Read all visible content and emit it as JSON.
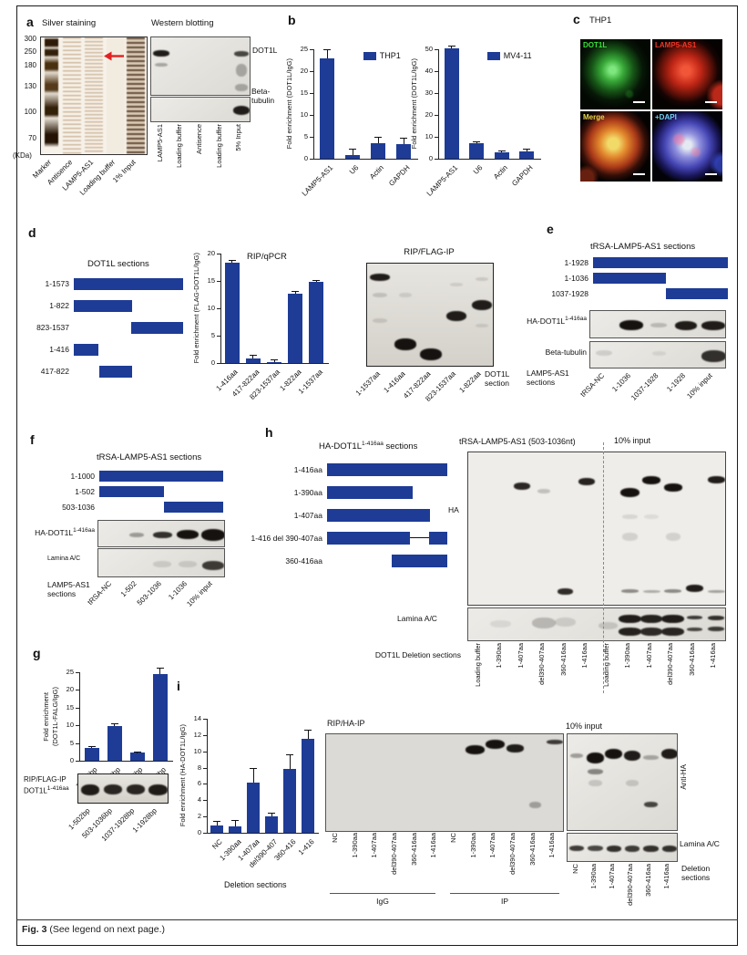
{
  "page": {
    "caption_fig": "Fig. 3",
    "caption_rest": " (See legend on next page.)"
  },
  "colors": {
    "bar_blue": "#1e3c96",
    "arrow_red": "#e32021",
    "dot1l_green": "#3ae03a",
    "lamp5_red": "#f03726",
    "merge_yellow": "#e8d44d",
    "dapi_cyan": "#6fd0f0"
  },
  "panel_a": {
    "label": "a",
    "silver_title": "Silver staining",
    "western_title": "Western blotting",
    "kda": [
      "300",
      "250",
      "180",
      "130",
      "100",
      "70"
    ],
    "kda_unit": "(KDa)",
    "silver_lanes": [
      "Marker",
      "Antisence",
      "LAMP5-AS1",
      "Loading buffer",
      "1% Input"
    ],
    "western_lanes": [
      "LAMP5-AS1",
      "Loading buffer",
      "Antisence",
      "Loading buffer",
      "5% Input"
    ],
    "row_dot1l": "DOT1L",
    "row_tubulin": "Beta-tubulin",
    "blot_dot1l": {
      "lanes": 5,
      "bands": [
        {
          "l": 0,
          "y": 0.27,
          "s": 0.95,
          "h": 7,
          "w": 0.8
        },
        {
          "l": 0,
          "y": 0.46,
          "s": 0.3,
          "h": 4,
          "w": 0.6
        },
        {
          "l": 4,
          "y": 0.27,
          "s": 0.75,
          "h": 6,
          "w": 0.7
        },
        {
          "l": 4,
          "y": 0.55,
          "s": 0.28,
          "h": 14,
          "w": 0.55
        },
        {
          "l": 4,
          "y": 0.85,
          "s": 0.28,
          "h": 8,
          "w": 0.6
        }
      ]
    },
    "blot_tubulin": {
      "lanes": 5,
      "bands": [
        {
          "l": 4,
          "y": 0.5,
          "s": 0.95,
          "h": 10,
          "w": 0.85
        }
      ]
    }
  },
  "panel_b": {
    "label": "b"
  },
  "panel_c": {
    "label": "c",
    "cell_line": "THP1",
    "cells": [
      {
        "name": "DOT1L"
      },
      {
        "name": "LAMP5-AS1"
      },
      {
        "name": "Merge"
      },
      {
        "name": "+DAPI"
      }
    ]
  },
  "panel_d": {
    "label": "d",
    "sections_title": "DOT1L sections",
    "sections": [
      {
        "label": "1-1573",
        "s": 0,
        "e": 1
      },
      {
        "label": "1-822",
        "s": 0,
        "e": 0.53
      },
      {
        "label": "823-1537",
        "s": 0.525,
        "e": 1
      },
      {
        "label": "1-416",
        "s": 0,
        "e": 0.225
      },
      {
        "label": "417-822",
        "s": 0.23,
        "e": 0.53
      }
    ],
    "blot_title": "RIP/FLAG-IP",
    "blot_lanes": [
      "1-1537aa",
      "1-416aa",
      "417-822aa",
      "823-1537aa",
      "1-822aa"
    ],
    "blot_caption": "DOT1L section",
    "blot": {
      "lanes": 5,
      "bands": [
        {
          "l": 0,
          "y": 0.13,
          "s": 0.95,
          "h": 8,
          "w": 0.8
        },
        {
          "l": 1,
          "y": 0.78,
          "s": 1,
          "h": 13,
          "w": 0.85
        },
        {
          "l": 2,
          "y": 0.87,
          "s": 1,
          "h": 13,
          "w": 0.85
        },
        {
          "l": 3,
          "y": 0.5,
          "s": 0.95,
          "h": 11,
          "w": 0.8
        },
        {
          "l": 4,
          "y": 0.4,
          "s": 0.95,
          "h": 11,
          "w": 0.8
        },
        {
          "l": 0,
          "y": 0.3,
          "s": 0.15,
          "h": 5,
          "w": 0.6
        },
        {
          "l": 0,
          "y": 0.55,
          "s": 0.12,
          "h": 5,
          "w": 0.6
        },
        {
          "l": 1,
          "y": 0.3,
          "s": 0.1,
          "h": 5,
          "w": 0.5
        },
        {
          "l": 3,
          "y": 0.2,
          "s": 0.1,
          "h": 4,
          "w": 0.5
        },
        {
          "l": 4,
          "y": 0.15,
          "s": 0.12,
          "h": 4,
          "w": 0.5
        },
        {
          "l": 4,
          "y": 0.6,
          "s": 0.1,
          "h": 4,
          "w": 0.5
        }
      ]
    }
  },
  "panel_e": {
    "label": "e",
    "sections_title": "tRSA-LAMP5-AS1 sections",
    "sections": [
      {
        "label": "1-1928",
        "s": 0,
        "e": 1
      },
      {
        "label": "1-1036",
        "s": 0,
        "e": 0.54
      },
      {
        "label": "1037-1928",
        "s": 0.54,
        "e": 1
      }
    ],
    "row_ha_base": "HA-DOT1L",
    "row_ha_sup": "1-416aa",
    "row_tubulin": "Beta-tubulin",
    "lanes": [
      "tRSA-NC",
      "1-1036",
      "1037-1928",
      "1-1928",
      "10% input"
    ],
    "lane_caption": "LAMP5-AS1 sections",
    "blot_ha": {
      "lanes": 5,
      "bands": [
        {
          "l": 1,
          "y": 0.5,
          "s": 1,
          "h": 11,
          "w": 0.85
        },
        {
          "l": 2,
          "y": 0.5,
          "s": 0.2,
          "h": 5,
          "w": 0.6
        },
        {
          "l": 3,
          "y": 0.5,
          "s": 0.95,
          "h": 10,
          "w": 0.8
        },
        {
          "l": 4,
          "y": 0.5,
          "s": 0.95,
          "h": 10,
          "w": 0.85
        }
      ]
    },
    "blot_tub": {
      "lanes": 5,
      "bands": [
        {
          "l": 4,
          "y": 0.5,
          "s": 0.85,
          "h": 13,
          "w": 0.9
        },
        {
          "l": 0,
          "y": 0.4,
          "s": 0.12,
          "h": 6,
          "w": 0.6
        },
        {
          "l": 2,
          "y": 0.4,
          "s": 0.08,
          "h": 5,
          "w": 0.5
        }
      ]
    }
  },
  "panel_f": {
    "label": "f",
    "sections_title": "tRSA-LAMP5-AS1 sections",
    "sections": [
      {
        "label": "1-1000",
        "s": 0,
        "e": 1
      },
      {
        "label": "1-502",
        "s": 0,
        "e": 0.52
      },
      {
        "label": "503-1036",
        "s": 0.52,
        "e": 1
      }
    ],
    "row_ha_base": "HA-DOT1L",
    "row_ha_sup": "1-416aa",
    "row_lamina": "Lamina A/C",
    "lanes": [
      "tRSA-NC",
      "1-502",
      "503-1036",
      "1-1036",
      "10% input"
    ],
    "lane_caption": "LAMP5-AS1 sections",
    "blot_ha": {
      "lanes": 5,
      "bands": [
        {
          "l": 1,
          "y": 0.5,
          "s": 0.35,
          "h": 5,
          "w": 0.6
        },
        {
          "l": 2,
          "y": 0.5,
          "s": 0.85,
          "h": 7,
          "w": 0.75
        },
        {
          "l": 3,
          "y": 0.5,
          "s": 1,
          "h": 10,
          "w": 0.85
        },
        {
          "l": 4,
          "y": 0.5,
          "s": 1,
          "h": 13,
          "w": 0.95
        }
      ]
    },
    "blot_lam": {
      "lanes": 5,
      "bands": [
        {
          "l": 2,
          "y": 0.5,
          "s": 0.12,
          "h": 7,
          "w": 0.7
        },
        {
          "l": 3,
          "y": 0.5,
          "s": 0.12,
          "h": 7,
          "w": 0.7
        },
        {
          "l": 4,
          "y": 0.55,
          "s": 0.8,
          "h": 10,
          "w": 0.85
        }
      ]
    }
  },
  "panel_g": {
    "label": "g",
    "blot_title": "RIP/FLAG-IP",
    "row_base": "DOT1L",
    "row_sup": "1-416aa",
    "lanes": [
      "1-502bp",
      "503-1036bp",
      "1037-1928bp",
      "1-1928bp"
    ],
    "blot": {
      "lanes": 4,
      "bands": [
        {
          "l": 0,
          "y": 0.5,
          "s": 0.95,
          "h": 12,
          "w": 0.8
        },
        {
          "l": 1,
          "y": 0.5,
          "s": 0.9,
          "h": 11,
          "w": 0.8
        },
        {
          "l": 2,
          "y": 0.5,
          "s": 0.9,
          "h": 11,
          "w": 0.8
        },
        {
          "l": 3,
          "y": 0.5,
          "s": 0.95,
          "h": 12,
          "w": 0.85
        }
      ]
    }
  },
  "panel_h": {
    "label": "h",
    "sections_title_base": "HA-DOT1L",
    "sections_title_sup": "1-416aa",
    "sections_title_rest": " sections",
    "sections": [
      {
        "label": "1-416aa",
        "s": 0,
        "e": 1
      },
      {
        "label": "1-390aa",
        "s": 0,
        "e": 0.71
      },
      {
        "label": "1-407aa",
        "s": 0,
        "e": 0.855
      },
      {
        "label": "1-416 del 390-407aa",
        "s": 0,
        "e": 0.69,
        "line": [
          0.69,
          0.85
        ],
        "seg2": [
          0.85,
          1
        ]
      },
      {
        "label": "360-416aa",
        "s": 0.54,
        "e": 1
      }
    ],
    "blot_title_left": "tRSA-LAMP5-AS1 (503-1036nt)",
    "blot_title_right": "10% input",
    "row_ha": "HA",
    "row_lamina": "Lamina A/C",
    "lane_caption": "DOT1L Deletion sections",
    "lanes": [
      "Loading buffer",
      "1-390aa",
      "1-407aa",
      "del390-407aa",
      "360-416aa",
      "1-416aa",
      "Loading buffer",
      "1-390aa",
      "1-407aa",
      "del390-407aa",
      "360-416aa",
      "1-416aa"
    ],
    "blot_ha": {
      "lanes": 12,
      "bands": [
        {
          "l": 2,
          "y": 0.22,
          "s": 0.9,
          "h": 8,
          "w": 0.75
        },
        {
          "l": 3,
          "y": 0.25,
          "s": 0.2,
          "h": 5,
          "w": 0.6
        },
        {
          "l": 5,
          "y": 0.19,
          "s": 0.92,
          "h": 8,
          "w": 0.75
        },
        {
          "l": 4,
          "y": 0.9,
          "s": 0.88,
          "h": 7,
          "w": 0.7
        },
        {
          "l": 7,
          "y": 0.26,
          "s": 1,
          "h": 10,
          "w": 0.9
        },
        {
          "l": 8,
          "y": 0.18,
          "s": 1,
          "h": 9,
          "w": 0.85
        },
        {
          "l": 9,
          "y": 0.23,
          "s": 1,
          "h": 9,
          "w": 0.85
        },
        {
          "l": 11,
          "y": 0.18,
          "s": 0.95,
          "h": 8,
          "w": 0.8
        },
        {
          "l": 10,
          "y": 0.88,
          "s": 0.95,
          "h": 8,
          "w": 0.8
        },
        {
          "l": 7,
          "y": 0.9,
          "s": 0.45,
          "h": 4,
          "w": 0.8
        },
        {
          "l": 8,
          "y": 0.9,
          "s": 0.3,
          "h": 3,
          "w": 0.8
        },
        {
          "l": 9,
          "y": 0.9,
          "s": 0.45,
          "h": 4,
          "w": 0.8
        },
        {
          "l": 11,
          "y": 0.9,
          "s": 0.35,
          "h": 3,
          "w": 0.8
        },
        {
          "l": 7,
          "y": 0.55,
          "s": 0.12,
          "h": 9,
          "w": 0.7
        },
        {
          "l": 9,
          "y": 0.55,
          "s": 0.12,
          "h": 9,
          "w": 0.7
        },
        {
          "l": 7,
          "y": 0.42,
          "s": 0.1,
          "h": 5,
          "w": 0.7
        },
        {
          "l": 8,
          "y": 0.42,
          "s": 0.08,
          "h": 5,
          "w": 0.7
        }
      ]
    },
    "blot_lam": {
      "lanes": 12,
      "bands": [
        {
          "l": 1,
          "y": 0.45,
          "s": 0.08,
          "h": 8,
          "w": 1
        },
        {
          "l": 3,
          "y": 0.42,
          "s": 0.22,
          "h": 12,
          "w": 1.1
        },
        {
          "l": 4,
          "y": 0.4,
          "s": 0.12,
          "h": 10,
          "w": 1
        },
        {
          "l": 6,
          "y": 0.5,
          "s": 0.15,
          "h": 8,
          "w": 0.9
        },
        {
          "l": 7,
          "y": 0.3,
          "s": 0.95,
          "h": 9,
          "w": 1.05
        },
        {
          "l": 7,
          "y": 0.68,
          "s": 0.92,
          "h": 9,
          "w": 1.05
        },
        {
          "l": 8,
          "y": 0.3,
          "s": 0.92,
          "h": 9,
          "w": 1
        },
        {
          "l": 8,
          "y": 0.68,
          "s": 0.88,
          "h": 9,
          "w": 1
        },
        {
          "l": 9,
          "y": 0.3,
          "s": 0.95,
          "h": 9,
          "w": 1.05
        },
        {
          "l": 9,
          "y": 0.68,
          "s": 0.9,
          "h": 9,
          "w": 1.05
        },
        {
          "l": 10,
          "y": 0.28,
          "s": 0.8,
          "h": 4,
          "w": 0.7
        },
        {
          "l": 10,
          "y": 0.62,
          "s": 0.75,
          "h": 4,
          "w": 0.7
        },
        {
          "l": 11,
          "y": 0.28,
          "s": 0.85,
          "h": 5,
          "w": 0.75
        },
        {
          "l": 11,
          "y": 0.6,
          "s": 0.8,
          "h": 5,
          "w": 0.75
        }
      ]
    }
  },
  "panel_i": {
    "label": "i",
    "blot_title_left": "RIP/HA-IP",
    "blot_title_right": "10% input",
    "group_left": "IgG",
    "group_right": "IP",
    "row_antiha": "Anti-HA",
    "row_lamina": "Lamina A/C",
    "lane_caption": "Deletion sections",
    "rip_lanes": [
      "NC",
      "1-390aa",
      "1-407aa",
      "del390-407aa",
      "360-416aa",
      "1-416aa",
      "NC",
      "1-390aa",
      "1-407aa",
      "del390-407aa",
      "360-416aa",
      "1-416aa"
    ],
    "input_lanes": [
      "NC",
      "1-390aa",
      "1-407aa",
      "del390-407aa",
      "360-416aa",
      "1-416aa"
    ],
    "blot_rip": {
      "lanes": 12,
      "bands": [
        {
          "l": 7,
          "y": 0.16,
          "s": 1,
          "h": 10,
          "w": 0.95
        },
        {
          "l": 8,
          "y": 0.1,
          "s": 1,
          "h": 10,
          "w": 0.95
        },
        {
          "l": 9,
          "y": 0.14,
          "s": 0.95,
          "h": 9,
          "w": 0.85
        },
        {
          "l": 10,
          "y": 0.72,
          "s": 0.3,
          "h": 7,
          "w": 0.6
        },
        {
          "l": 11,
          "y": 0.08,
          "s": 0.8,
          "h": 5,
          "w": 0.85
        }
      ]
    },
    "blot_input": {
      "lanes": 6,
      "bands": [
        {
          "l": 0,
          "y": 0.22,
          "s": 0.35,
          "h": 5,
          "w": 0.7
        },
        {
          "l": 1,
          "y": 0.24,
          "s": 1,
          "h": 12,
          "w": 0.95
        },
        {
          "l": 1,
          "y": 0.38,
          "s": 0.45,
          "h": 6,
          "w": 0.8
        },
        {
          "l": 2,
          "y": 0.2,
          "s": 1,
          "h": 11,
          "w": 0.95
        },
        {
          "l": 3,
          "y": 0.22,
          "s": 0.95,
          "h": 11,
          "w": 0.9
        },
        {
          "l": 4,
          "y": 0.24,
          "s": 0.3,
          "h": 5,
          "w": 0.8
        },
        {
          "l": 4,
          "y": 0.72,
          "s": 0.75,
          "h": 6,
          "w": 0.7
        },
        {
          "l": 5,
          "y": 0.2,
          "s": 0.95,
          "h": 11,
          "w": 0.9
        },
        {
          "l": 1,
          "y": 0.5,
          "s": 0.15,
          "h": 7,
          "w": 0.7
        },
        {
          "l": 3,
          "y": 0.5,
          "s": 0.15,
          "h": 7,
          "w": 0.7
        }
      ]
    },
    "blot_lam": {
      "lanes": 6,
      "bands": [
        {
          "l": 0,
          "y": 0.5,
          "s": 0.8,
          "h": 6,
          "w": 0.8
        },
        {
          "l": 1,
          "y": 0.5,
          "s": 0.75,
          "h": 6,
          "w": 0.8
        },
        {
          "l": 2,
          "y": 0.5,
          "s": 0.85,
          "h": 7,
          "w": 0.8
        },
        {
          "l": 3,
          "y": 0.5,
          "s": 0.8,
          "h": 7,
          "w": 0.8
        },
        {
          "l": 4,
          "y": 0.5,
          "s": 0.85,
          "h": 7,
          "w": 0.8
        },
        {
          "l": 5,
          "y": 0.5,
          "s": 0.85,
          "h": 7,
          "w": 0.8
        }
      ]
    }
  },
  "chart_data": [
    {
      "type": "bar",
      "legend": "THP1",
      "ylabel": "Fold enrichment (DOT1L/IgG)",
      "ylim": [
        0,
        25
      ],
      "yticks": [
        0,
        5,
        10,
        15,
        20,
        25
      ],
      "categories": [
        "LAMP5-AS1",
        "U6",
        "Actin",
        "GAPDH"
      ],
      "values": [
        23,
        0.9,
        3.5,
        3.3
      ],
      "errors": [
        1.8,
        1.2,
        1.3,
        1.2
      ]
    },
    {
      "type": "bar",
      "legend": "MV4-11",
      "ylabel": "Fold enrichment (DOT1L/IgG)",
      "ylim": [
        0,
        50
      ],
      "yticks": [
        0,
        10,
        20,
        30,
        40,
        50
      ],
      "categories": [
        "LAMP5-AS1",
        "U6",
        "Actin",
        "GAPDH"
      ],
      "values": [
        50.5,
        7,
        3,
        3.5
      ],
      "errors": [
        0.8,
        0.4,
        0.4,
        0.5
      ]
    },
    {
      "type": "bar",
      "title": "RIP/qPCR",
      "ylabel": "Fold enrichment (FLAG-DOT1L/IgG)",
      "ylim": [
        0,
        20
      ],
      "yticks": [
        0,
        5,
        10,
        15,
        20
      ],
      "categories": [
        "1-416aa",
        "417-822aa",
        "823-1537aa",
        "1-822aa",
        "1-1537aa"
      ],
      "values": [
        18.3,
        0.9,
        0.2,
        12.7,
        14.8
      ],
      "errors": [
        0.3,
        0.4,
        0.35,
        0.25,
        0.2
      ]
    },
    {
      "type": "bar",
      "ylabel": "Fold enrichment\n(DOT1L-FALG/IgG)",
      "ylim": [
        0,
        25
      ],
      "yticks": [
        0,
        5,
        10,
        15,
        20,
        25
      ],
      "categories": [
        "1-502bp",
        "503-1036bp",
        "1037-1928bp",
        "1-1928bp"
      ],
      "values": [
        3.5,
        9.8,
        2.2,
        24.5
      ],
      "errors": [
        0.4,
        0.4,
        0.25,
        1.6
      ]
    },
    {
      "type": "bar",
      "ylabel": "Fold enrichment (HA-DOT1L/IgG)",
      "xlabel": "Deletion sections",
      "ylim": [
        0,
        14
      ],
      "yticks": [
        0,
        2,
        4,
        6,
        8,
        10,
        12,
        14
      ],
      "categories": [
        "NC",
        "1-390aa",
        "1-407aa",
        "del390-407",
        "360-416",
        "1-416"
      ],
      "values": [
        0.9,
        0.8,
        6.2,
        2,
        7.8,
        11.5
      ],
      "errors": [
        0.5,
        0.7,
        1.6,
        0.3,
        1.7,
        1.1
      ]
    }
  ]
}
